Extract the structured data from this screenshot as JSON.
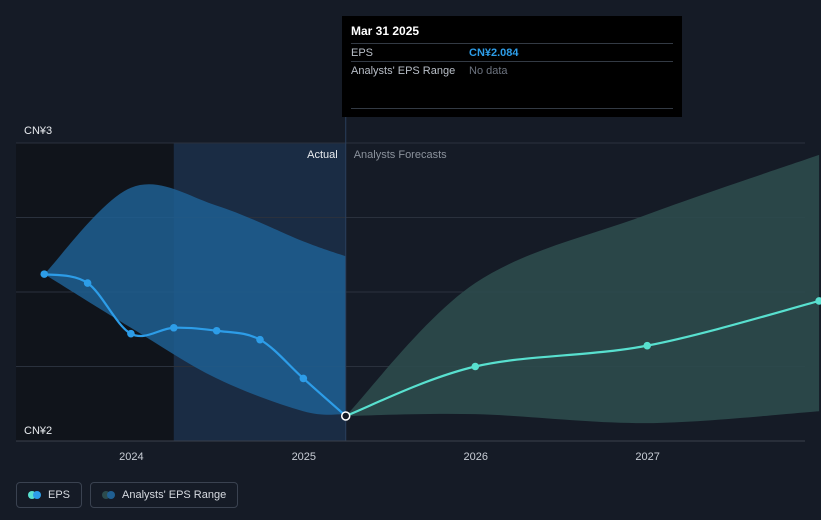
{
  "colors": {
    "background": "#151b26",
    "actual_line": "#2d9de8",
    "actual_band": "#1f5f92",
    "forecast_line": "#58e0cf",
    "forecast_band": "#2c4b4d",
    "grid": "#2a313d",
    "past_shade": "#10141b",
    "highlight_shade": "#1a2c44"
  },
  "chart_data": {
    "type": "line",
    "y_unit_labels": [
      "CN¥3",
      "CN¥2"
    ],
    "ylim": [
      2,
      3
    ],
    "x_ticks": [
      "2024",
      "2025",
      "2026",
      "2027"
    ],
    "xlim": [
      "2023-05",
      "2027-12"
    ],
    "divider_date": "2025-03-31",
    "section_labels": {
      "actual": "Actual",
      "forecast": "Analysts Forecasts"
    },
    "series": [
      {
        "name": "EPS",
        "kind": "actual",
        "points": [
          [
            "2023-06-30",
            2.56
          ],
          [
            "2023-09-30",
            2.53
          ],
          [
            "2023-12-31",
            2.36
          ],
          [
            "2024-03-31",
            2.38
          ],
          [
            "2024-06-30",
            2.37
          ],
          [
            "2024-09-30",
            2.34
          ],
          [
            "2024-12-31",
            2.21
          ],
          [
            "2025-03-31",
            2.084
          ]
        ]
      },
      {
        "name": "EPS",
        "kind": "forecast",
        "points": [
          [
            "2025-03-31",
            2.084
          ],
          [
            "2025-12-31",
            2.25
          ],
          [
            "2026-12-31",
            2.32
          ],
          [
            "2027-12-31",
            2.47
          ]
        ]
      },
      {
        "name": "Analysts' EPS Range",
        "kind": "actual-band",
        "upper": [
          [
            "2023-06-30",
            2.56
          ],
          [
            "2023-12-31",
            2.85
          ],
          [
            "2024-06-30",
            2.79
          ],
          [
            "2024-12-31",
            2.67
          ],
          [
            "2025-03-31",
            2.62
          ]
        ],
        "lower": [
          [
            "2023-06-30",
            2.56
          ],
          [
            "2023-12-31",
            2.38
          ],
          [
            "2024-06-30",
            2.21
          ],
          [
            "2024-12-31",
            2.1
          ],
          [
            "2025-03-31",
            2.09
          ]
        ]
      },
      {
        "name": "Analysts' EPS Range",
        "kind": "forecast-band",
        "upper": [
          [
            "2025-03-31",
            2.084
          ],
          [
            "2025-12-31",
            2.53
          ],
          [
            "2026-12-31",
            2.76
          ],
          [
            "2027-12-31",
            2.96
          ]
        ],
        "lower": [
          [
            "2025-03-31",
            2.084
          ],
          [
            "2025-12-31",
            2.09
          ],
          [
            "2026-12-31",
            2.06
          ],
          [
            "2027-12-31",
            2.1
          ]
        ]
      }
    ]
  },
  "tooltip": {
    "date": "Mar 31 2025",
    "rows": [
      {
        "label": "EPS",
        "value": "CN¥2.084"
      },
      {
        "label": "Analysts' EPS Range",
        "value": "No data"
      }
    ]
  },
  "legend": [
    {
      "label": "EPS",
      "colors": [
        "#58e0cf",
        "#2d9de8"
      ]
    },
    {
      "label": "Analysts' EPS Range",
      "colors": [
        "#2c4b4d",
        "#1f5f92"
      ]
    }
  ]
}
